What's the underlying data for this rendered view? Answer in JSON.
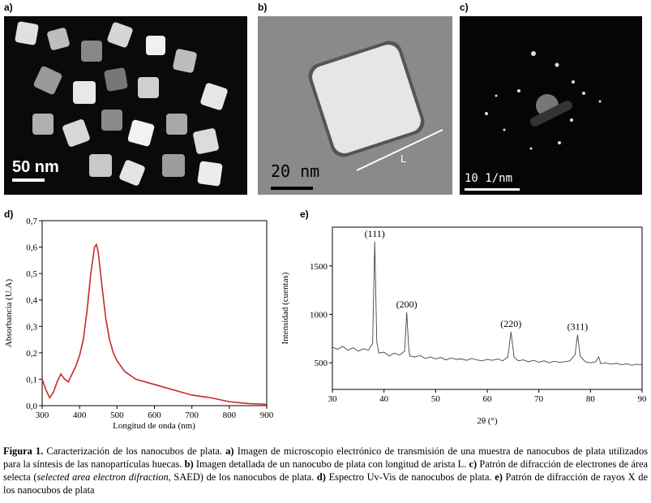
{
  "panels": {
    "a": {
      "label": "a)",
      "scale_text": "50 nm"
    },
    "b": {
      "label": "b)",
      "scale_text": "20 nm",
      "edge_text": "L"
    },
    "c": {
      "label": "c)",
      "scale_text": "10 1/nm"
    }
  },
  "chart_data": [
    {
      "type": "line",
      "panel_label": "d)",
      "x_label": "Longitud de onda (nm)",
      "y_label": "Absorbancia (U.A)",
      "color": "#c8282a",
      "x": [
        300,
        310,
        320,
        330,
        340,
        350,
        360,
        370,
        380,
        390,
        400,
        410,
        420,
        430,
        440,
        445,
        450,
        460,
        470,
        480,
        490,
        500,
        520,
        550,
        600,
        650,
        700,
        750,
        800,
        850,
        900
      ],
      "values": [
        0.1,
        0.06,
        0.03,
        0.05,
        0.09,
        0.12,
        0.1,
        0.09,
        0.12,
        0.15,
        0.19,
        0.25,
        0.36,
        0.5,
        0.6,
        0.61,
        0.58,
        0.45,
        0.33,
        0.25,
        0.2,
        0.17,
        0.13,
        0.1,
        0.08,
        0.06,
        0.04,
        0.03,
        0.015,
        0.008,
        0.005
      ],
      "xlim": [
        300,
        900
      ],
      "ylim": [
        0,
        0.7
      ],
      "xticks": [
        300,
        400,
        500,
        600,
        700,
        800,
        900
      ],
      "yticks": [
        {
          "value": 0,
          "label": "0,0"
        },
        {
          "value": 0.1,
          "label": "0,1"
        },
        {
          "value": 0.2,
          "label": "0,2"
        },
        {
          "value": 0.3,
          "label": "0,3"
        },
        {
          "value": 0.4,
          "label": "0,4"
        },
        {
          "value": 0.5,
          "label": "0,5"
        },
        {
          "value": 0.6,
          "label": "0,6"
        },
        {
          "value": 0.7,
          "label": "0,7"
        }
      ],
      "grid": false
    },
    {
      "type": "line",
      "panel_label": "e)",
      "x_label": "2θ (°)",
      "y_label": "Intensidad (cuentas)",
      "color": "#444444",
      "x": [
        30,
        31,
        32,
        33,
        34,
        35,
        36,
        37,
        37.8,
        38.2,
        38.6,
        39,
        40,
        41,
        42,
        43,
        44,
        44.4,
        44.8,
        45,
        46,
        47,
        48,
        49,
        50,
        51,
        52,
        53,
        54,
        55,
        56,
        57,
        58,
        59,
        60,
        61,
        62,
        63,
        64,
        64.6,
        65.2,
        66,
        67,
        68,
        69,
        70,
        71,
        72,
        73,
        74,
        75,
        76,
        77,
        77.5,
        78,
        79,
        80,
        81,
        81.6,
        82,
        83,
        84,
        85,
        86,
        87,
        88,
        89,
        90
      ],
      "values": [
        660,
        640,
        670,
        630,
        655,
        620,
        645,
        630,
        700,
        1750,
        720,
        600,
        610,
        570,
        600,
        580,
        620,
        1020,
        640,
        570,
        560,
        575,
        545,
        560,
        540,
        555,
        530,
        550,
        535,
        540,
        525,
        545,
        530,
        520,
        535,
        525,
        540,
        520,
        560,
        820,
        560,
        520,
        530,
        510,
        525,
        505,
        520,
        500,
        515,
        505,
        510,
        520,
        580,
        790,
        570,
        510,
        500,
        510,
        560,
        490,
        500,
        485,
        495,
        480,
        490,
        475,
        485,
        480
      ],
      "xlim": [
        30,
        90
      ],
      "ylim": [
        225,
        1900
      ],
      "xticks": [
        30,
        40,
        50,
        60,
        70,
        80,
        90
      ],
      "yticks": [
        500,
        1000,
        1500
      ],
      "grid": false,
      "annotations": [
        {
          "text": "(111)",
          "x": 38.2
        },
        {
          "text": "(200)",
          "x": 44.4
        },
        {
          "text": "(220)",
          "x": 64.6
        },
        {
          "text": "(311)",
          "x": 77.5
        }
      ]
    }
  ],
  "caption": [
    {
      "text": "Figura 1.",
      "style": "bold"
    },
    {
      "text": " Caracterización de los nanocubos de plata. ",
      "style": "normal"
    },
    {
      "text": "a)",
      "style": "bold"
    },
    {
      "text": " Imagen de microscopio electrónico de transmisión de una muestra de nanocubos de plata utilizados para la síntesis de las nanopartículas huecas. ",
      "style": "normal"
    },
    {
      "text": "b)",
      "style": "bold"
    },
    {
      "text": " Imagen detallada de un nanocubo de plata con longitud de arista L. ",
      "style": "normal"
    },
    {
      "text": "c)",
      "style": "bold"
    },
    {
      "text": " Patrón de difracción de electrones de área selecta (",
      "style": "normal"
    },
    {
      "text": "selected area electron difraction",
      "style": "italic"
    },
    {
      "text": ", SAED) de los nanocubos de plata. ",
      "style": "normal"
    },
    {
      "text": "d)",
      "style": "bold"
    },
    {
      "text": " Espectro Uv-Vis de nanocubos de plata. ",
      "style": "normal"
    },
    {
      "text": "e)",
      "style": "bold"
    },
    {
      "text": " Patrón de difracción de rayos X de los nanocubos de plata",
      "style": "normal"
    }
  ]
}
